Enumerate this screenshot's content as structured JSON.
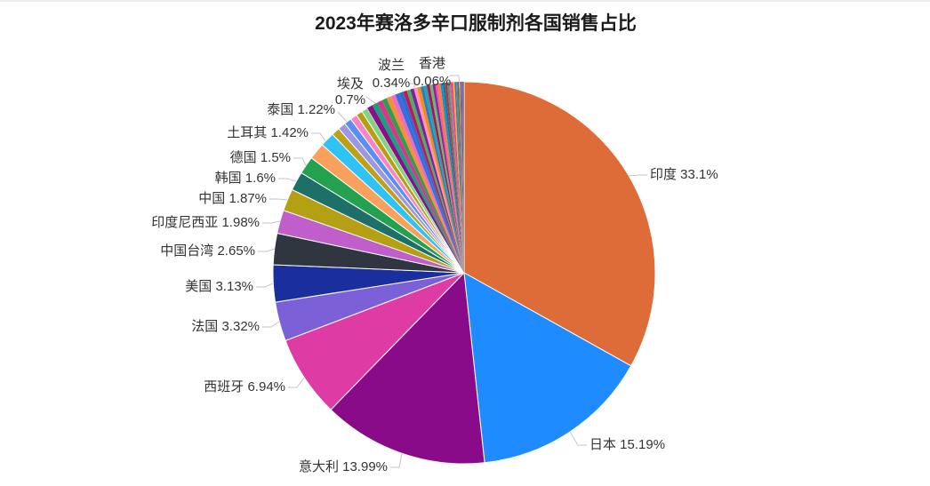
{
  "page": {
    "background": "#ffffff",
    "top_border_color": "#ececec"
  },
  "chart_data": {
    "type": "pie",
    "title": "2023年赛洛多辛口服制剂各国销售占比",
    "value_unit": "%",
    "label_format": "{name} {value}%",
    "legend_position": "none",
    "styles": {
      "title_color": "#1b1b1b",
      "label_text_color": "#333333",
      "leader_line_color": "#c6c6c6",
      "slice_border_color": "#ffffff"
    },
    "slices": [
      {
        "name": "印度",
        "value": 33.1,
        "color": "#DD6C38",
        "labeled": true
      },
      {
        "name": "日本",
        "value": 15.19,
        "color": "#1E8CFF",
        "labeled": true
      },
      {
        "name": "意大利",
        "value": 13.99,
        "color": "#8A0B8A",
        "labeled": true
      },
      {
        "name": "西班牙",
        "value": 6.94,
        "color": "#DF3BA4",
        "labeled": true
      },
      {
        "name": "法国",
        "value": 3.32,
        "color": "#7B60D8",
        "labeled": true
      },
      {
        "name": "美国",
        "value": 3.13,
        "color": "#1A2F9D",
        "labeled": true
      },
      {
        "name": "中国台湾",
        "value": 2.65,
        "color": "#30363F",
        "labeled": true
      },
      {
        "name": "印度尼西亚",
        "value": 1.98,
        "color": "#C05FC9",
        "labeled": true
      },
      {
        "name": "中国",
        "value": 1.87,
        "color": "#B4A012",
        "labeled": true
      },
      {
        "name": "韩国",
        "value": 1.6,
        "color": "#1E6F68",
        "labeled": true
      },
      {
        "name": "德国",
        "value": 1.5,
        "color": "#23A14E",
        "labeled": true
      },
      {
        "name": "土耳其",
        "value": 1.42,
        "color": "#F9A15C",
        "labeled": true
      },
      {
        "name": "泰国",
        "value": 1.22,
        "color": "#2EC2F5",
        "labeled": true
      },
      {
        "name": "埃及",
        "value": 0.7,
        "color": "#BDA11D",
        "labeled": true
      },
      {
        "value": 0.66,
        "color": "#9D95E6",
        "labeled": false
      },
      {
        "value": 0.62,
        "color": "#5A8FF0",
        "labeled": false
      },
      {
        "value": 0.58,
        "color": "#F883C5",
        "labeled": false
      },
      {
        "value": 0.55,
        "color": "#B5A014",
        "labeled": false
      },
      {
        "value": 0.52,
        "color": "#7FD483",
        "labeled": false
      },
      {
        "value": 0.49,
        "color": "#8B0E8B",
        "labeled": false
      },
      {
        "value": 0.46,
        "color": "#18A07C",
        "labeled": false
      },
      {
        "value": 0.44,
        "color": "#E0318F",
        "labeled": false
      },
      {
        "value": 0.42,
        "color": "#2BA14D",
        "labeled": false
      },
      {
        "value": 0.4,
        "color": "#FB8C3C",
        "labeled": false
      },
      {
        "value": 0.38,
        "color": "#EE6FB5",
        "labeled": false
      },
      {
        "value": 0.36,
        "color": "#3A6BE0",
        "labeled": false
      },
      {
        "name": "波兰",
        "value": 0.34,
        "color": "#2F6BD0",
        "labeled": true
      },
      {
        "value": 0.32,
        "color": "#C2185B",
        "labeled": false
      },
      {
        "value": 0.31,
        "color": "#46B354",
        "labeled": false
      },
      {
        "value": 0.3,
        "color": "#7E1FA8",
        "labeled": false
      },
      {
        "value": 0.29,
        "color": "#FF93B8",
        "labeled": false
      },
      {
        "value": 0.28,
        "color": "#FB8C00",
        "labeled": false
      },
      {
        "value": 0.27,
        "color": "#2A79D8",
        "labeled": false
      },
      {
        "value": 0.26,
        "color": "#26A69A",
        "labeled": false
      },
      {
        "value": 0.25,
        "color": "#AD1457",
        "labeled": false
      },
      {
        "value": 0.24,
        "color": "#66BB6A",
        "labeled": false
      },
      {
        "value": 0.23,
        "color": "#8E24AA",
        "labeled": false
      },
      {
        "value": 0.22,
        "color": "#F06292",
        "labeled": false
      },
      {
        "value": 0.21,
        "color": "#FF7F2A",
        "labeled": false
      },
      {
        "value": 0.2,
        "color": "#1E88E5",
        "labeled": false
      },
      {
        "value": 0.19,
        "color": "#00897B",
        "labeled": false
      },
      {
        "value": 0.18,
        "color": "#D81B60",
        "labeled": false
      },
      {
        "value": 0.17,
        "color": "#43A047",
        "labeled": false
      },
      {
        "value": 0.16,
        "color": "#BA68C8",
        "labeled": false
      },
      {
        "value": 0.15,
        "color": "#EC407A",
        "labeled": false
      },
      {
        "value": 0.14,
        "color": "#FFB300",
        "labeled": false
      },
      {
        "value": 0.13,
        "color": "#5C6BC0",
        "labeled": false
      },
      {
        "value": 0.12,
        "color": "#00ACC1",
        "labeled": false
      },
      {
        "value": 0.11,
        "color": "#D32F2F",
        "labeled": false
      },
      {
        "value": 0.1,
        "color": "#7CB342",
        "labeled": false
      },
      {
        "value": 0.09,
        "color": "#AB47BC",
        "labeled": false
      },
      {
        "value": 0.08,
        "color": "#16857B",
        "labeled": false
      },
      {
        "value": 0.07,
        "color": "#D23A8D",
        "labeled": false
      },
      {
        "name": "香港",
        "value": 0.06,
        "color": "#2F54A8",
        "labeled": true
      },
      {
        "value": 0.04,
        "color": "#C2CA96",
        "labeled": false
      }
    ]
  }
}
